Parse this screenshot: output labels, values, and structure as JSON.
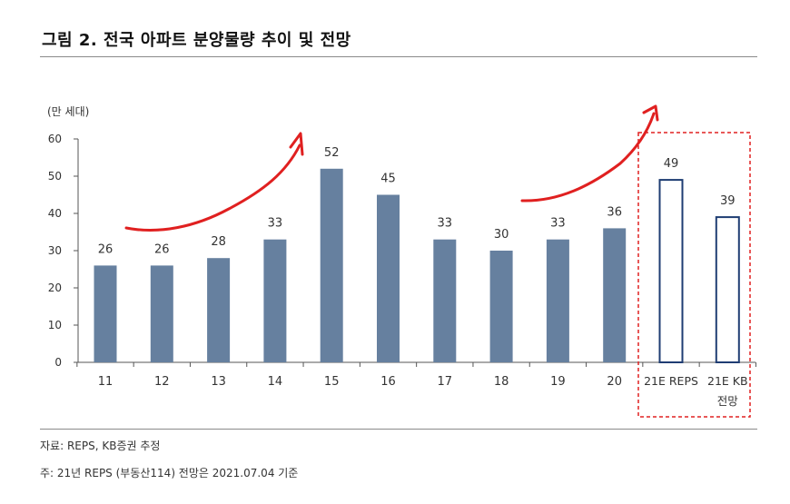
{
  "title": "그림 2. 전국 아파트 분양물량 추이 및 전망",
  "source": "자료: REPS, KB증권 추정",
  "note": "주: 21년 REPS (부동산114) 전망은 2021.07.04 기준",
  "chart_data": {
    "type": "bar",
    "unit_label": "(만 세대)",
    "categories": [
      "11",
      "12",
      "13",
      "14",
      "15",
      "16",
      "17",
      "18",
      "19",
      "20",
      "21E REPS",
      "21E KB 전망"
    ],
    "values": [
      26,
      26,
      28,
      33,
      52,
      45,
      33,
      30,
      33,
      36,
      49,
      39
    ],
    "forecast_flags": [
      false,
      false,
      false,
      false,
      false,
      false,
      false,
      false,
      false,
      false,
      true,
      true
    ],
    "ylim": [
      0,
      60
    ],
    "yticks": [
      0,
      10,
      20,
      30,
      40,
      50,
      60
    ],
    "grid": false,
    "bar_color": "#66809f",
    "forecast_border_color": "#1f3d73",
    "annotation_color": "#e02020"
  }
}
